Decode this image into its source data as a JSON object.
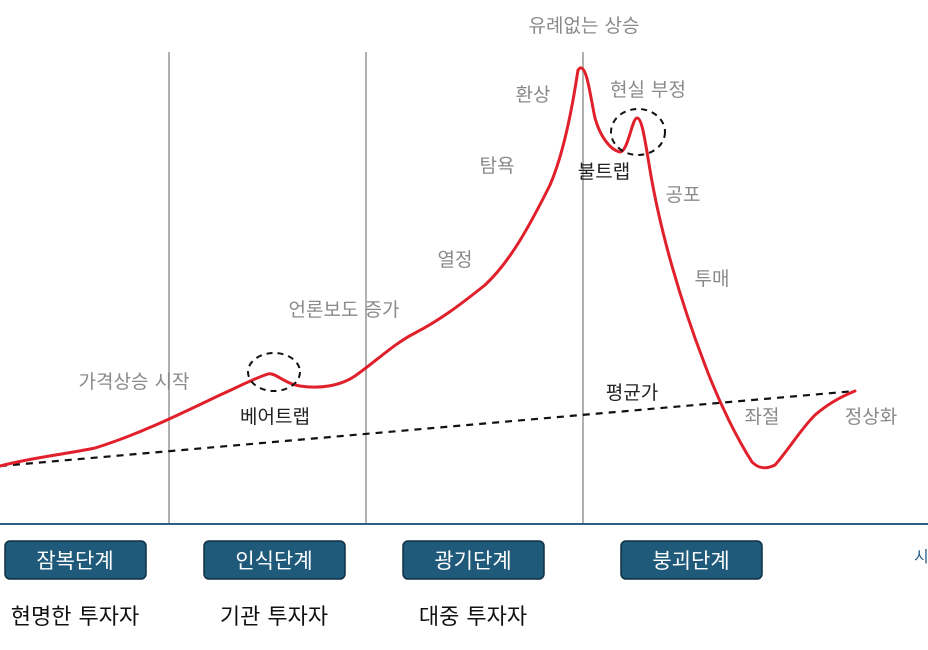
{
  "phase_labels": {
    "unprecedented_rise": "유례없는 상승",
    "illusion": "환상",
    "denial": "현실 부정",
    "greed": "탐욕",
    "bull_trap": "불트랩",
    "fear": "공포",
    "enthusiasm": "열정",
    "capitulation": "투매",
    "media_coverage": "언론보도 증가",
    "price_rise_start": "가격상승 시작",
    "bear_trap": "베어트랩",
    "mean_price": "평균가",
    "despair": "좌절",
    "normalization": "정상화"
  },
  "stages": [
    {
      "label": "잠복단계",
      "investor": "현명한 투자자"
    },
    {
      "label": "인식단계",
      "investor": "기관 투자자"
    },
    {
      "label": "광기단계",
      "investor": "대중 투자자"
    },
    {
      "label": "붕괴단계",
      "investor": ""
    }
  ],
  "axis_label_partial": "시",
  "colors": {
    "curve": "#e0202b",
    "stage_box": "#1f5a7a",
    "divider": "#b0b0b0",
    "axis": "#2b5f87",
    "label_gray": "#8a8a8a"
  }
}
